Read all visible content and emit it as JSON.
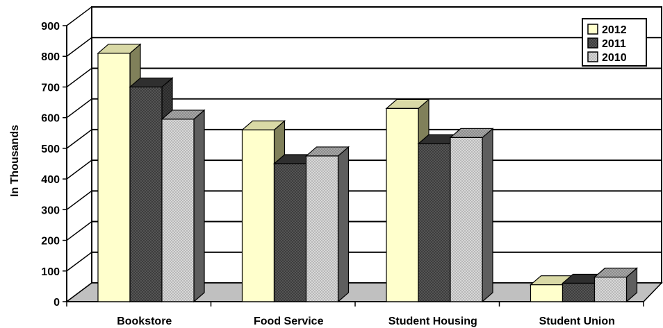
{
  "chart_data": {
    "type": "bar",
    "title": "",
    "xlabel": "",
    "ylabel": "In Thousands",
    "ylim": [
      0,
      900
    ],
    "y_ticks": [
      "0",
      "100",
      "200",
      "300",
      "400",
      "500",
      "600",
      "700",
      "800",
      "900"
    ],
    "grid": true,
    "legend_position": "top-right",
    "categories": [
      "Bookstore",
      "Food Service",
      "Student Housing",
      "Student Union"
    ],
    "series": [
      {
        "name": "2012",
        "values": [
          810,
          560,
          630,
          55
        ],
        "color": "#ffffcc"
      },
      {
        "name": "2011",
        "values": [
          700,
          450,
          515,
          60
        ],
        "color": "#555555"
      },
      {
        "name": "2010",
        "values": [
          595,
          475,
          535,
          80
        ],
        "color": "#cccccc"
      }
    ]
  }
}
